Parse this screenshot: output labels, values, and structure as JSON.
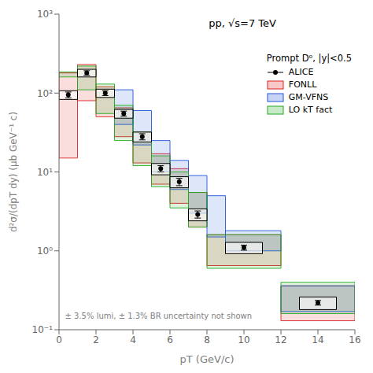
{
  "chart_data": {
    "type": "band",
    "title": "pp, √s=7 TeV",
    "xlabel": "pT (GeV/c)",
    "ylabel": "d²σ/(dpT dy) (μb GeV⁻¹ c)",
    "annotation": "± 3.5% lumi, ± 1.3% BR uncertainty not shown",
    "legend_title": "Prompt D⁰, |y|<0.5",
    "xlim": [
      0,
      16
    ],
    "xticks": [
      0,
      2,
      4,
      6,
      8,
      10,
      12,
      14,
      16
    ],
    "ylim": [
      0.1,
      1000
    ],
    "yticks": [
      {
        "value": 0.1,
        "label": "10⁻¹"
      },
      {
        "value": 1,
        "label": "10⁰"
      },
      {
        "value": 10,
        "label": "10¹"
      },
      {
        "value": 100,
        "label": "10²"
      },
      {
        "value": 1000,
        "label": "10³"
      }
    ],
    "log": "y",
    "grid": false,
    "legend": "upper right",
    "series": [
      {
        "name": "ALICE",
        "type": "scatter",
        "color": "black",
        "marker": "o",
        "x": [
          0.5,
          1.5,
          2.5,
          3.5,
          4.5,
          5.5,
          6.5,
          7.5,
          10.0,
          14.0
        ],
        "values": [
          95,
          180,
          100,
          55,
          28,
          11,
          7.5,
          2.9,
          1.1,
          0.22
        ],
        "err_stat": [
          8,
          12,
          7,
          4,
          2.5,
          1.0,
          0.8,
          0.3,
          0.08,
          0.015
        ],
        "err_syst_lo": [
          12,
          20,
          12,
          7,
          4,
          1.8,
          1.2,
          0.5,
          0.18,
          0.04
        ],
        "err_syst_hi": [
          12,
          20,
          12,
          7,
          4,
          1.8,
          1.2,
          0.5,
          0.18,
          0.04
        ],
        "syst_box_width": [
          1.0,
          1.0,
          1.0,
          1.0,
          1.0,
          1.0,
          1.0,
          1.0,
          2.0,
          2.0
        ]
      },
      {
        "name": "FONLL",
        "type": "band",
        "color": "#dd2222",
        "bins": [
          [
            0,
            1,
            15,
            180
          ],
          [
            1,
            2,
            80,
            230
          ],
          [
            2,
            3,
            50,
            120
          ],
          [
            3,
            4,
            28,
            65
          ],
          [
            4,
            5,
            13,
            32
          ],
          [
            5,
            6,
            7,
            17
          ],
          [
            6,
            7,
            4,
            11
          ],
          [
            7,
            8,
            2,
            5.5
          ],
          [
            8,
            12,
            0.65,
            1.6
          ],
          [
            12,
            16,
            0.13,
            0.36
          ]
        ]
      },
      {
        "name": "GM-VFNS",
        "type": "band",
        "color": "#2255dd",
        "bins": [
          [
            3,
            4,
            40,
            110
          ],
          [
            4,
            5,
            22,
            60
          ],
          [
            5,
            6,
            10,
            25
          ],
          [
            6,
            7,
            6,
            14
          ],
          [
            7,
            8,
            3,
            9
          ],
          [
            8,
            9,
            1.5,
            5
          ],
          [
            9,
            12,
            1.0,
            1.8
          ],
          [
            12,
            16,
            0.17,
            0.36
          ]
        ]
      },
      {
        "name": "LO kT fact",
        "type": "band",
        "color": "#22aa22",
        "bins": [
          [
            0,
            1,
            160,
            185
          ],
          [
            1,
            2,
            110,
            220
          ],
          [
            2,
            3,
            55,
            130
          ],
          [
            3,
            4,
            25,
            70
          ],
          [
            4,
            5,
            12,
            32
          ],
          [
            5,
            6,
            6.5,
            16
          ],
          [
            6,
            7,
            3.5,
            10
          ],
          [
            7,
            8,
            2.0,
            5.5
          ],
          [
            8,
            12,
            0.6,
            1.6
          ],
          [
            12,
            16,
            0.16,
            0.4
          ]
        ]
      }
    ]
  }
}
